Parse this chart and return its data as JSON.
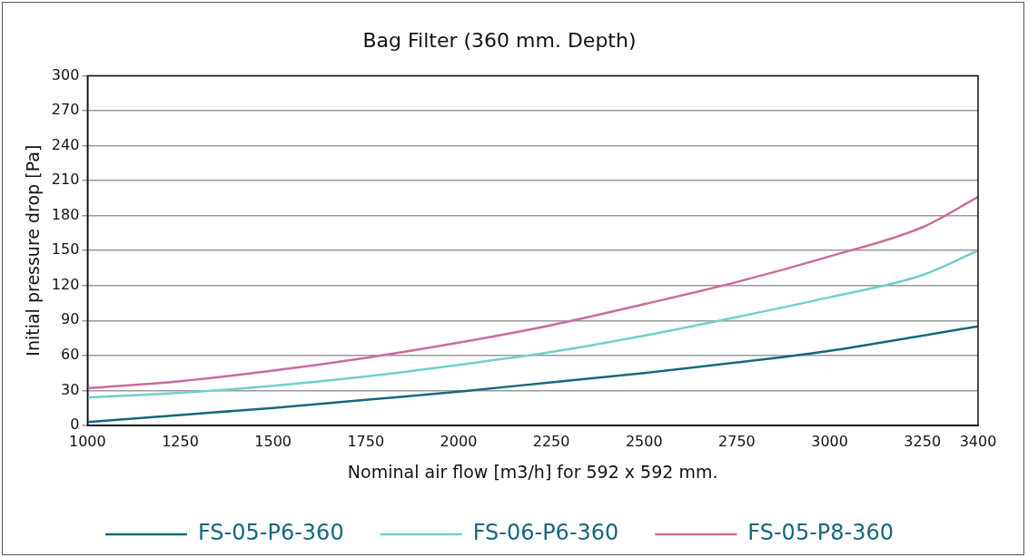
{
  "chart_data": {
    "type": "line",
    "title": "Bag Filter (360 mm. Depth)",
    "xlabel": "Nominal air flow [m3/h] for 592 x 592 mm.",
    "ylabel": "Initial pressure drop [Pa]",
    "x": [
      1000,
      1250,
      1500,
      1750,
      2000,
      2250,
      2500,
      2750,
      3000,
      3250,
      3400
    ],
    "series": [
      {
        "name": "FS-05-P6-360",
        "color": "#16687e",
        "values": [
          3,
          9,
          15,
          22,
          29,
          37,
          45,
          54,
          64,
          77,
          85
        ]
      },
      {
        "name": "FS-06-P6-360",
        "color": "#6fd0cb",
        "values": [
          24,
          28,
          34,
          42,
          52,
          63,
          77,
          93,
          110,
          129,
          150
        ]
      },
      {
        "name": "FS-05-P8-360",
        "color": "#cc6a9c",
        "values": [
          32,
          38,
          47,
          58,
          71,
          86,
          104,
          123,
          145,
          170,
          196
        ]
      }
    ],
    "xlim": [
      1000,
      3400
    ],
    "xticks": [
      1000,
      1250,
      1500,
      1750,
      2000,
      2250,
      2500,
      2750,
      3000,
      3250,
      3400
    ],
    "ylim": [
      0,
      300
    ],
    "yticks": [
      0,
      30,
      60,
      90,
      120,
      150,
      180,
      210,
      240,
      270,
      300
    ],
    "grid": "y",
    "legend": "bottom",
    "marker": "none",
    "line_style": "solid"
  }
}
